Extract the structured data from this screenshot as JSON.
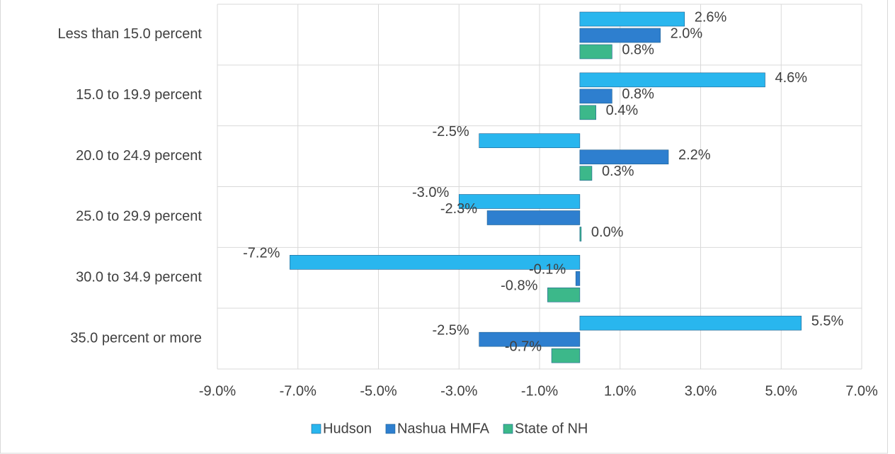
{
  "chart_data": {
    "type": "bar",
    "orientation": "horizontal",
    "categories": [
      "Less than 15.0 percent",
      "15.0 to 19.9 percent",
      "20.0 to 24.9 percent",
      "25.0 to 29.9 percent",
      "30.0 to 34.9 percent",
      "35.0 percent or more"
    ],
    "series": [
      {
        "name": "Hudson",
        "color": "#29b6ee",
        "values": [
          2.6,
          4.6,
          -2.5,
          -3.0,
          -7.2,
          5.5
        ],
        "value_labels": [
          "2.6%",
          "4.6%",
          "-2.5%",
          "-3.0%",
          "-7.2%",
          "5.5%"
        ]
      },
      {
        "name": "Nashua HMFA",
        "color": "#2e7fcf",
        "values": [
          2.0,
          0.8,
          2.2,
          -2.3,
          -0.1,
          -2.5
        ],
        "value_labels": [
          "2.0%",
          "0.8%",
          "2.2%",
          "-2.3%",
          "-0.1%",
          "-2.5%"
        ]
      },
      {
        "name": "State of NH",
        "color": "#3cb88a",
        "values": [
          0.8,
          0.4,
          0.3,
          0.0,
          -0.8,
          -0.7
        ],
        "value_labels": [
          "0.8%",
          "0.4%",
          "0.3%",
          "0.0%",
          "-0.8%",
          "-0.7%"
        ]
      }
    ],
    "xlim": [
      -9,
      7
    ],
    "xticks": [
      {
        "value": -9,
        "label": "-9.0%"
      },
      {
        "value": -7,
        "label": "-7.0%"
      },
      {
        "value": -5,
        "label": "-5.0%"
      },
      {
        "value": -3,
        "label": "-3.0%"
      },
      {
        "value": -1,
        "label": "-1.0%"
      },
      {
        "value": 1,
        "label": "1.0%"
      },
      {
        "value": 3,
        "label": "3.0%"
      },
      {
        "value": 5,
        "label": "5.0%"
      },
      {
        "value": 7,
        "label": "7.0%"
      }
    ],
    "grid": true,
    "legend": "bottom"
  }
}
